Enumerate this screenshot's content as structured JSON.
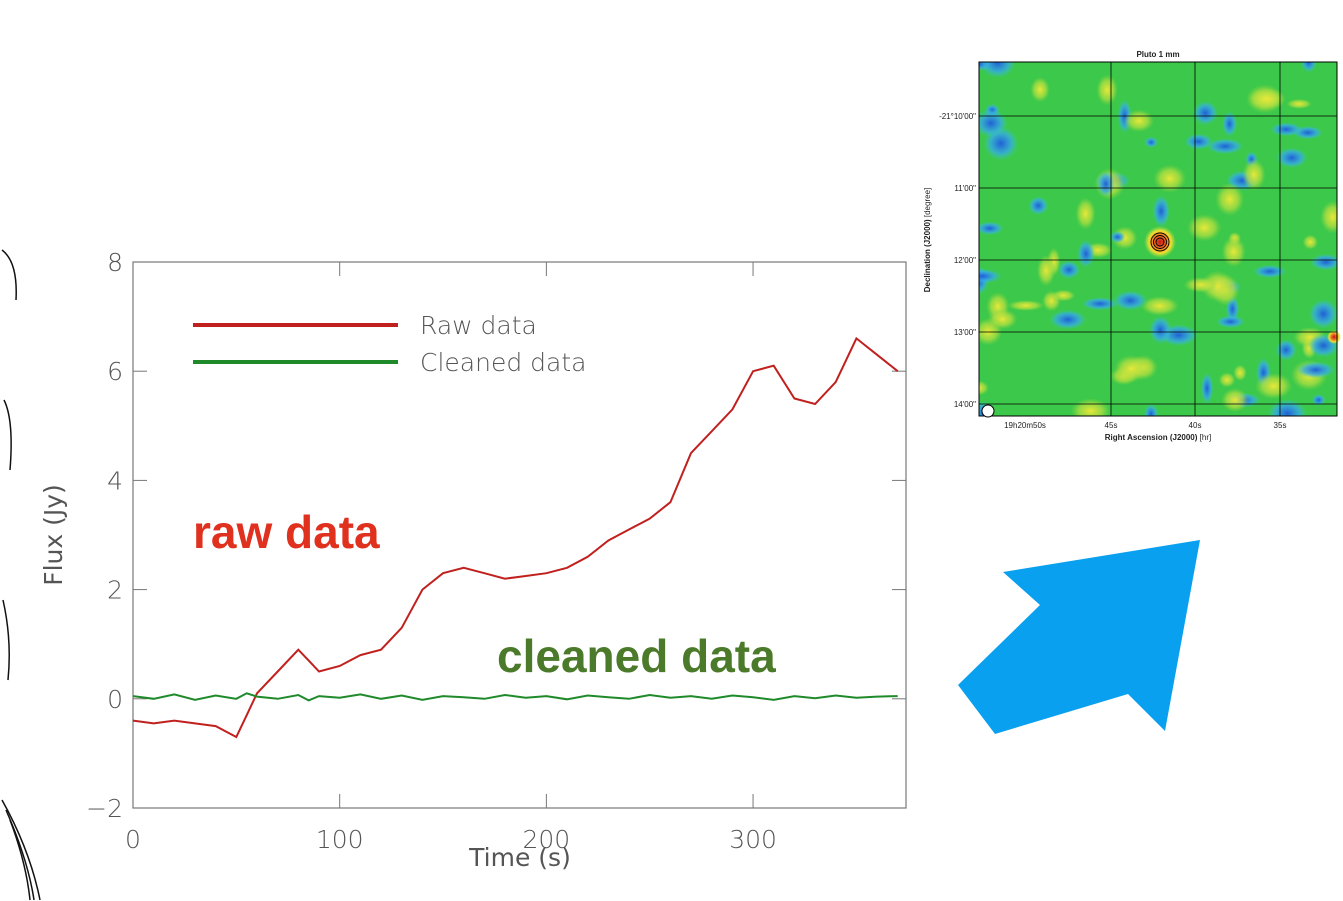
{
  "chart_data": {
    "type": "line",
    "xlabel": "Time (s)",
    "ylabel": "Flux (Jy)",
    "xlim": [
      0,
      374
    ],
    "ylim": [
      -2,
      8
    ],
    "xticks": [
      0,
      100,
      200,
      300
    ],
    "yticks": [
      {
        "value": -2,
        "label": "−2"
      },
      0,
      2,
      4,
      6,
      8
    ],
    "legend": "upper-left",
    "x": [
      0,
      10,
      20,
      30,
      40,
      50,
      55,
      60,
      70,
      80,
      85,
      90,
      100,
      110,
      120,
      130,
      140,
      150,
      160,
      170,
      180,
      190,
      200,
      210,
      220,
      230,
      240,
      250,
      260,
      270,
      280,
      290,
      300,
      310,
      320,
      330,
      340,
      350,
      360,
      370
    ],
    "series": [
      {
        "name": "Raw data",
        "color": "#c0211e",
        "values": [
          -0.4,
          -0.45,
          -0.4,
          -0.45,
          -0.5,
          -0.7,
          -0.3,
          0.1,
          0.5,
          0.9,
          0.7,
          0.5,
          0.6,
          0.8,
          0.9,
          1.3,
          2.0,
          2.3,
          2.4,
          2.3,
          2.2,
          2.25,
          2.3,
          2.4,
          2.6,
          2.9,
          3.1,
          3.3,
          3.6,
          4.5,
          4.9,
          5.3,
          6.0,
          6.1,
          5.5,
          5.4,
          5.8,
          6.6,
          6.3,
          6.0
        ]
      },
      {
        "name": "Cleaned data",
        "color": "#1f8a2a",
        "values": [
          0.05,
          0.0,
          0.08,
          -0.02,
          0.06,
          0.0,
          0.1,
          0.04,
          0.0,
          0.07,
          -0.03,
          0.05,
          0.02,
          0.08,
          0.0,
          0.06,
          -0.02,
          0.05,
          0.03,
          0.0,
          0.07,
          0.02,
          0.05,
          -0.01,
          0.06,
          0.03,
          0.0,
          0.07,
          0.02,
          0.05,
          0.0,
          0.06,
          0.03,
          -0.02,
          0.05,
          0.01,
          0.06,
          0.02,
          0.04,
          0.05
        ]
      }
    ],
    "annotations": [
      {
        "text": "raw data",
        "color": "#e0301e"
      },
      {
        "text": "cleaned data",
        "color": "#4a7a2a"
      }
    ]
  },
  "map": {
    "title": "Pluto 1 mm",
    "xlabel_bold": "Right Ascension (J2000)",
    "xlabel_unit": "[hr]",
    "ylabel_bold": "Declination (J2000)",
    "ylabel_unit": "[degree]",
    "xtick_labels": [
      "19h20m50s",
      "45s",
      "40s",
      "35s"
    ],
    "ytick_labels": [
      "-21°10'00\"",
      "11'00\"",
      "12'00\"",
      "13'00\"",
      "14'00\""
    ]
  }
}
